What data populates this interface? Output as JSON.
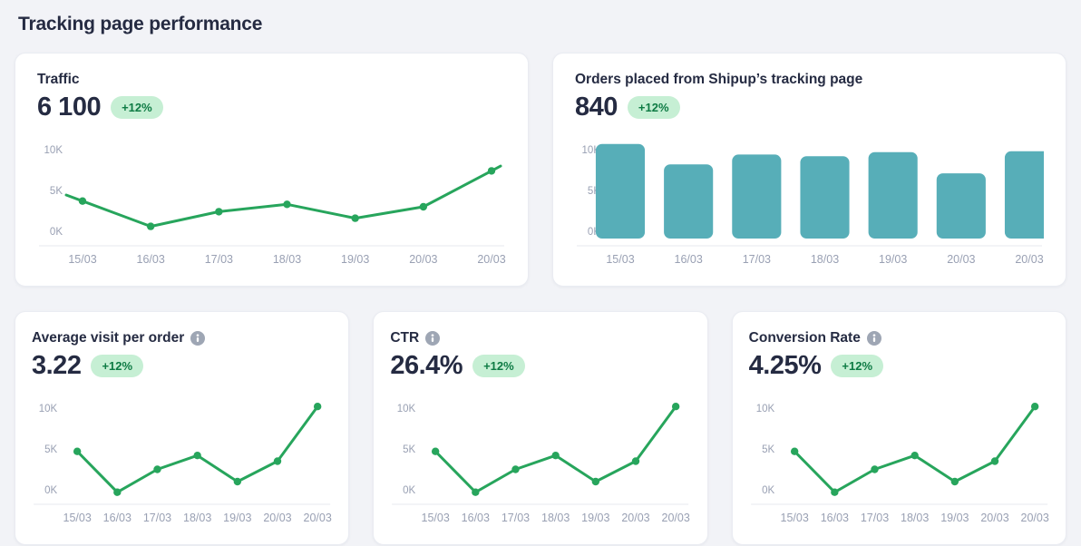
{
  "page": {
    "title": "Tracking page performance"
  },
  "theme": {
    "page_bg": "#f2f3f7",
    "card_bg": "#ffffff",
    "heading": "#252b42",
    "accent_green": "#27a55c",
    "bar_teal": "#57aeb8",
    "badge_bg": "#c6efd4",
    "badge_text": "#0e7b44",
    "axis_label": "#99a0b3",
    "divider": "#e7e9ef",
    "info_icon_gray": "#9ea6b4"
  },
  "cards": [
    {
      "title": "Traffic",
      "value": "6 100",
      "badge": "+12%",
      "chart_data": {
        "type": "line",
        "categories": [
          "15/03",
          "16/03",
          "17/03",
          "18/03",
          "19/03",
          "20/03",
          "20/03"
        ],
        "values": [
          3700,
          600,
          2400,
          3300,
          1600,
          3000,
          7400
        ],
        "y_ticks": [
          "0K",
          "5K",
          "10K"
        ],
        "y_tick_values": [
          0,
          5000,
          10000
        ],
        "ylim": [
          -500,
          12000
        ],
        "grid": false,
        "extend_line": true,
        "title": "Traffic"
      }
    },
    {
      "title": "Orders placed from Shipup’s tracking page",
      "value": "840",
      "badge": "+12%",
      "chart_data": {
        "type": "bar",
        "categories": [
          "15/03",
          "16/03",
          "17/03",
          "18/03",
          "19/03",
          "20/03",
          "20/03"
        ],
        "values": [
          10700,
          8200,
          9400,
          9200,
          9700,
          7100,
          9800
        ],
        "y_ticks": [
          "0K",
          "5K",
          "10K"
        ],
        "y_tick_values": [
          0,
          5000,
          10000
        ],
        "ylim": [
          0,
          12000
        ],
        "grid": false,
        "title": "Orders placed from Shipup’s tracking page"
      }
    },
    {
      "title": "Average visit per order",
      "value": "3.22",
      "badge": "+12%",
      "chart_data": {
        "type": "line",
        "categories": [
          "15/03",
          "16/03",
          "17/03",
          "18/03",
          "19/03",
          "20/03",
          "20/03"
        ],
        "values": [
          4700,
          -300,
          2500,
          4200,
          1000,
          3500,
          10200
        ],
        "y_ticks": [
          "0K",
          "5K",
          "10K"
        ],
        "y_tick_values": [
          0,
          5000,
          10000
        ],
        "ylim": [
          -500,
          12000
        ],
        "grid": false,
        "extend_line": false,
        "title": "Average visit per order"
      }
    },
    {
      "title": "CTR",
      "value": "26.4%",
      "badge": "+12%",
      "chart_data": {
        "type": "line",
        "categories": [
          "15/03",
          "16/03",
          "17/03",
          "18/03",
          "19/03",
          "20/03",
          "20/03"
        ],
        "values": [
          4700,
          -300,
          2500,
          4200,
          1000,
          3500,
          10200
        ],
        "y_ticks": [
          "0K",
          "5K",
          "10K"
        ],
        "y_tick_values": [
          0,
          5000,
          10000
        ],
        "ylim": [
          -500,
          12000
        ],
        "grid": false,
        "extend_line": false,
        "title": "CTR"
      }
    },
    {
      "title": "Conversion Rate",
      "value": "4.25%",
      "badge": "+12%",
      "chart_data": {
        "type": "line",
        "categories": [
          "15/03",
          "16/03",
          "17/03",
          "18/03",
          "19/03",
          "20/03",
          "20/03"
        ],
        "values": [
          4700,
          -300,
          2500,
          4200,
          1000,
          3500,
          10200
        ],
        "y_ticks": [
          "0K",
          "5K",
          "10K"
        ],
        "y_tick_values": [
          0,
          5000,
          10000
        ],
        "ylim": [
          -500,
          12000
        ],
        "grid": false,
        "extend_line": false,
        "title": "Conversion Rate"
      }
    }
  ]
}
